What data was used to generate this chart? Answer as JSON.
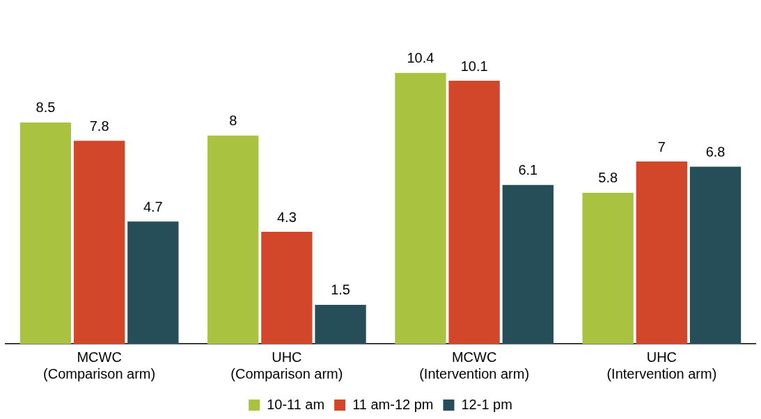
{
  "chart_data": {
    "type": "bar",
    "categories": [
      "MCWC\n(Comparison arm)",
      "UHC\n(Comparison arm)",
      "MCWC\n(Intervention arm)",
      "UHC\n(Intervention arm)"
    ],
    "series": [
      {
        "name": "10-11 am",
        "color": "#a9c23f",
        "values": [
          8.5,
          8,
          10.4,
          5.8
        ]
      },
      {
        "name": "11 am-12 pm",
        "color": "#d2462a",
        "values": [
          7.8,
          4.3,
          10.1,
          7
        ]
      },
      {
        "name": "12-1 pm",
        "color": "#264e59",
        "values": [
          4.7,
          1.5,
          6.1,
          6.8
        ]
      }
    ],
    "data_labels": true,
    "legend": "bottom",
    "grid": false
  }
}
